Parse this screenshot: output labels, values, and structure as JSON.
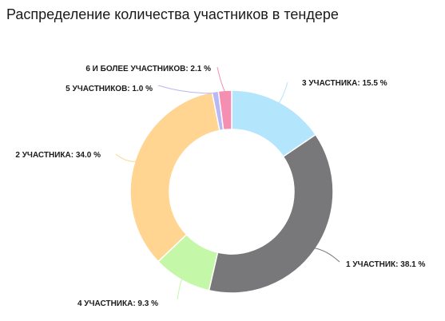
{
  "chart_data": {
    "type": "pie",
    "title": "Распределение количества участников в тендере",
    "donut": true,
    "slices": [
      {
        "label": "3 УЧАСТНИКА",
        "value": 15.5,
        "label_text": "3 УЧАСТНИКА: 15.5 %",
        "color": "#b3e5fc"
      },
      {
        "label": "1 УЧАСТНИК",
        "value": 38.1,
        "label_text": "1 УЧАСТНИК: 38.1 %",
        "color": "#78787a"
      },
      {
        "label": "4 УЧАСТНИКА",
        "value": 9.3,
        "label_text": "4 УЧАСТНИКА: 9.3 %",
        "color": "#c5f7a8"
      },
      {
        "label": "2 УЧАСТНИКА",
        "value": 34.0,
        "label_text": "2 УЧАСТНИКА: 34.0 %",
        "color": "#ffd591"
      },
      {
        "label": "5 УЧАСТНИКОВ",
        "value": 1.0,
        "label_text": "5 УЧАСТНИКОВ: 1.0 %",
        "color": "#b7b8f5"
      },
      {
        "label": "6 И БОЛЕЕ УЧАСТНИКОВ",
        "value": 2.1,
        "label_text": "6 И БОЛЕЕ УЧАСТНИКОВ: 2.1 %",
        "color": "#f58fb1"
      }
    ]
  }
}
